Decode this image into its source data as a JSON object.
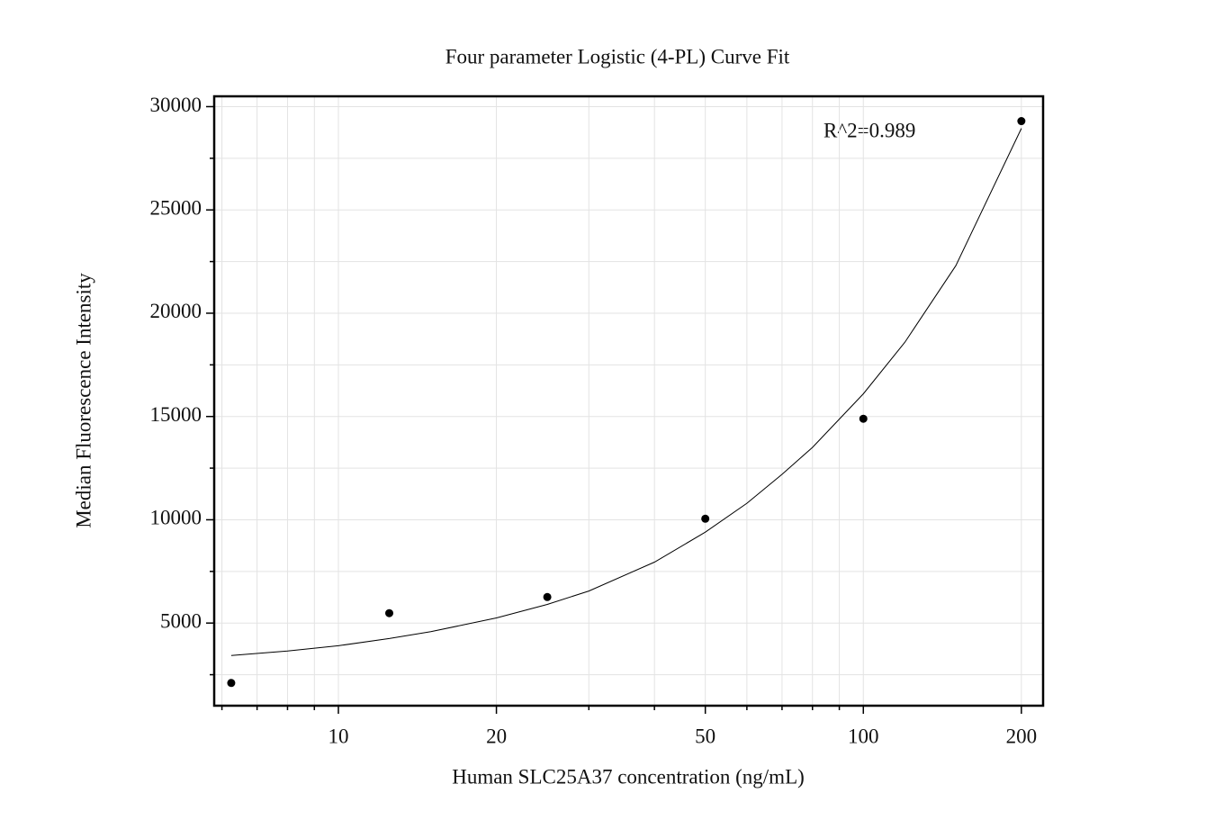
{
  "chart_data": {
    "type": "scatter",
    "title": "Four parameter Logistic (4-PL) Curve Fit",
    "x_label": "Human SLC25A37 concentration (ng/mL)",
    "y_label": "Median Fluorescence Intensity",
    "annotation": "R^2=0.989",
    "x_scale": "log",
    "grid": true,
    "color": "#000000",
    "x": [
      6.25,
      12.5,
      25,
      50,
      100,
      200
    ],
    "values": [
      2100,
      5480,
      6260,
      10050,
      14890,
      29300
    ],
    "fit_curve": {
      "x": [
        6.25,
        8,
        10,
        12.5,
        15,
        20,
        25,
        30,
        40,
        50,
        60,
        70,
        80,
        100,
        120,
        150,
        200
      ],
      "values": [
        3430,
        3650,
        3900,
        4250,
        4580,
        5250,
        5900,
        6550,
        7950,
        9400,
        10800,
        12200,
        13500,
        16100,
        18600,
        22300,
        28950
      ]
    },
    "xlim": [
      5.8,
      220
    ],
    "ylim": [
      1000,
      30500
    ],
    "xticks": [
      10,
      20,
      50,
      100,
      200
    ],
    "minor_xticks": [
      6,
      7,
      8,
      9,
      30,
      40,
      60,
      70,
      80,
      90
    ],
    "yticks": [
      5000,
      10000,
      15000,
      20000,
      25000,
      30000
    ],
    "minor_yticks": [
      2500,
      7500,
      12500,
      17500,
      22500,
      27500
    ]
  }
}
